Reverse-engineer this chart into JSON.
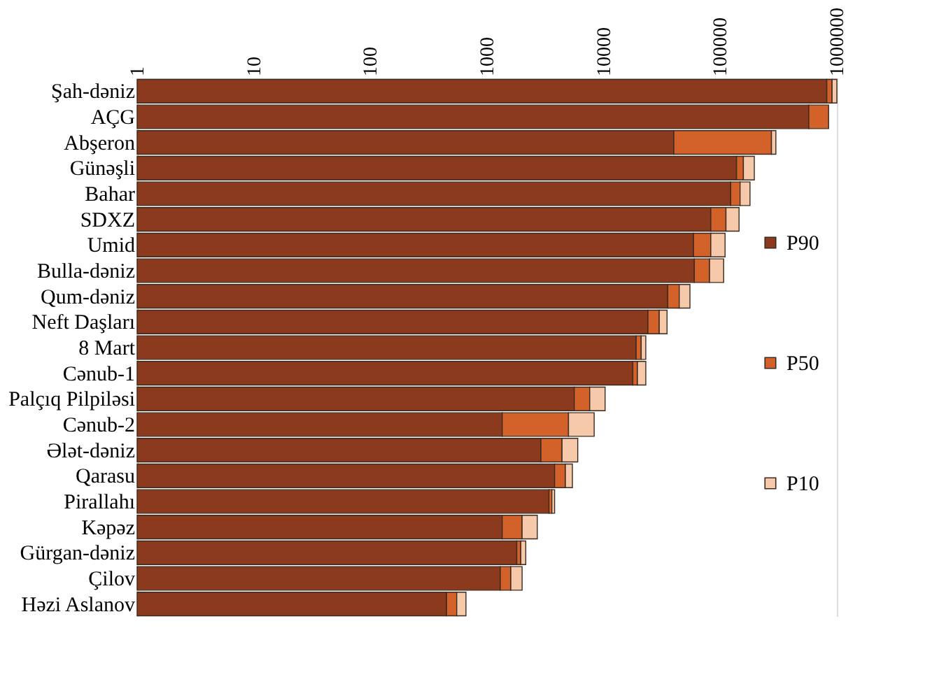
{
  "chart_data": {
    "type": "bar",
    "orientation": "horizontal",
    "stacked": true,
    "log": "x",
    "categories": [
      "Şah-dəniz",
      "AÇG",
      "Abşeron",
      "Günəşli",
      "Bahar",
      "SDXZ",
      "Umid",
      "Bulla-dəniz",
      "Qum-dəniz",
      "Neft Daşları",
      "8 Mart",
      "Cənub-1",
      "Palçıq Pilpiləsi",
      "Cənub-2",
      "Ələt-dəniz",
      "Qarasu",
      "Pirallahı",
      "Kəpəz",
      "Gürgan-dəniz",
      "Çilov",
      "Həzi Aslanov"
    ],
    "series": [
      {
        "name": "P90",
        "color": "#8b3a1e",
        "values": [
          820000,
          575000,
          40000,
          138000,
          123000,
          83000,
          59000,
          60000,
          35500,
          24000,
          19000,
          17800,
          5600,
          1350,
          2900,
          3800,
          3400,
          1350,
          1800,
          1300,
          450
        ]
      },
      {
        "name": "P50",
        "color": "#d2622a",
        "values": [
          90000,
          275000,
          235000,
          20000,
          25000,
          29000,
          24000,
          21000,
          9000,
          6000,
          2000,
          1700,
          2000,
          3650,
          1500,
          900,
          200,
          650,
          150,
          300,
          100
        ]
      },
      {
        "name": "P10",
        "color": "#f6c9aa",
        "values": [
          90000,
          null,
          25000,
          38000,
          32000,
          33000,
          27000,
          26000,
          10500,
          5000,
          2000,
          3500,
          2700,
          3300,
          1600,
          700,
          200,
          700,
          200,
          400,
          110
        ]
      }
    ],
    "xlim": [
      1,
      1000000
    ],
    "xticks": [
      1,
      10,
      100,
      1000,
      10000,
      100000,
      1000000
    ],
    "grid": false,
    "legend": "right"
  }
}
